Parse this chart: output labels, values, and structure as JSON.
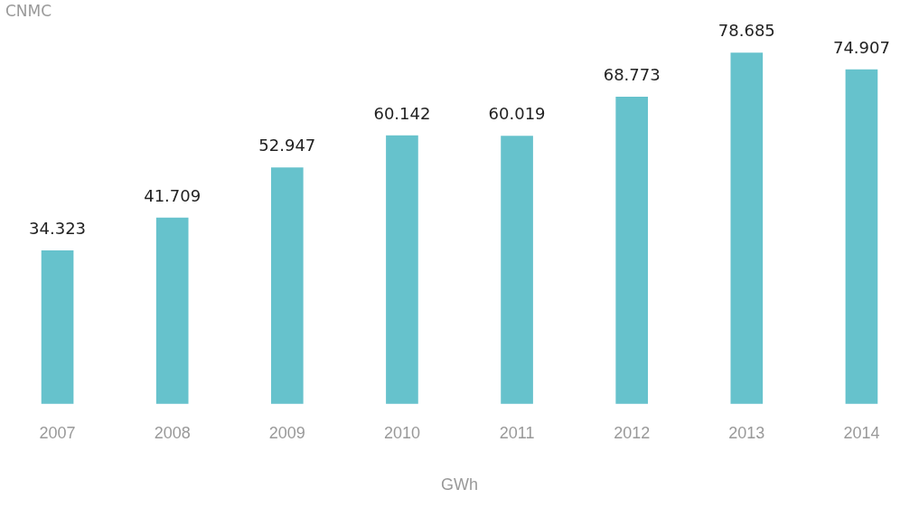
{
  "chart_data": {
    "type": "bar",
    "xlabel": "GWh",
    "annotations": [
      "CNMC"
    ],
    "categories": [
      "2007",
      "2008",
      "2009",
      "2010",
      "2011",
      "2012",
      "2013",
      "2014"
    ],
    "values": [
      34323,
      41709,
      52947,
      60142,
      60019,
      68773,
      78685,
      74907
    ],
    "value_labels": [
      "34.323",
      "41.709",
      "52.947",
      "60.142",
      "60.019",
      "68.773",
      "78.685",
      "74.907"
    ],
    "color": "#66c2cc",
    "grid": false,
    "legend": false
  }
}
